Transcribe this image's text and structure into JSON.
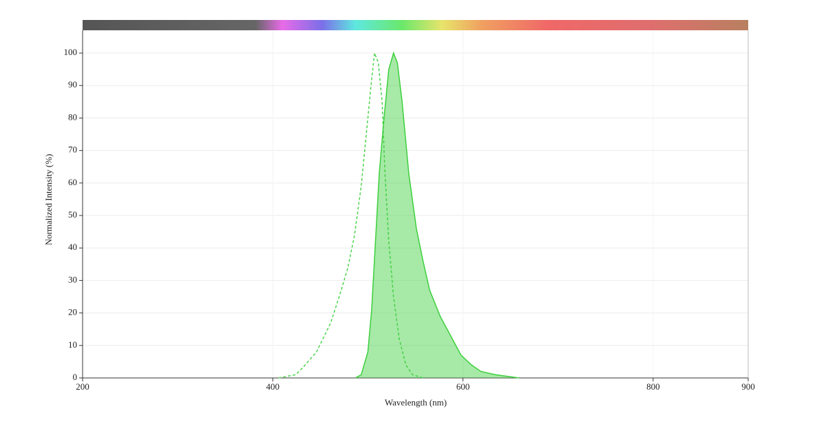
{
  "chart_data": {
    "type": "line",
    "x_label": "Wavelength (nm)",
    "y_label": "Normalized Intensity (%)",
    "xlim": [
      200,
      900
    ],
    "xticks": [
      200,
      400,
      600,
      800,
      900
    ],
    "ylim": [
      0,
      107
    ],
    "yticks": [
      0,
      10,
      20,
      30,
      40,
      50,
      60,
      70,
      80,
      90,
      100
    ],
    "grid": true,
    "series": [
      {
        "color": "#4cd44c",
        "line_style": "dashed",
        "filled": false,
        "x": [
          406,
          424,
          431,
          446,
          461,
          472,
          479,
          486,
          493,
          498,
          503,
          507,
          511,
          515,
          518,
          522,
          527,
          533,
          540,
          547,
          558
        ],
        "values": [
          0,
          1,
          3,
          8,
          17,
          27,
          34,
          44,
          59,
          74,
          89,
          100,
          97,
          85,
          63,
          42,
          25,
          12,
          4,
          1,
          0
        ]
      },
      {
        "color": "#3ccf3c",
        "line_style": "solid",
        "filled": true,
        "x": [
          487,
          493,
          500,
          504,
          508,
          512,
          517,
          522,
          527,
          531,
          536,
          543,
          551,
          558,
          565,
          576,
          587,
          598,
          609,
          619,
          634,
          659
        ],
        "values": [
          0,
          1,
          8,
          21,
          42,
          63,
          80,
          95,
          100,
          97,
          85,
          63,
          46,
          36,
          27,
          19,
          13,
          7,
          4,
          2,
          1,
          0
        ]
      }
    ]
  }
}
